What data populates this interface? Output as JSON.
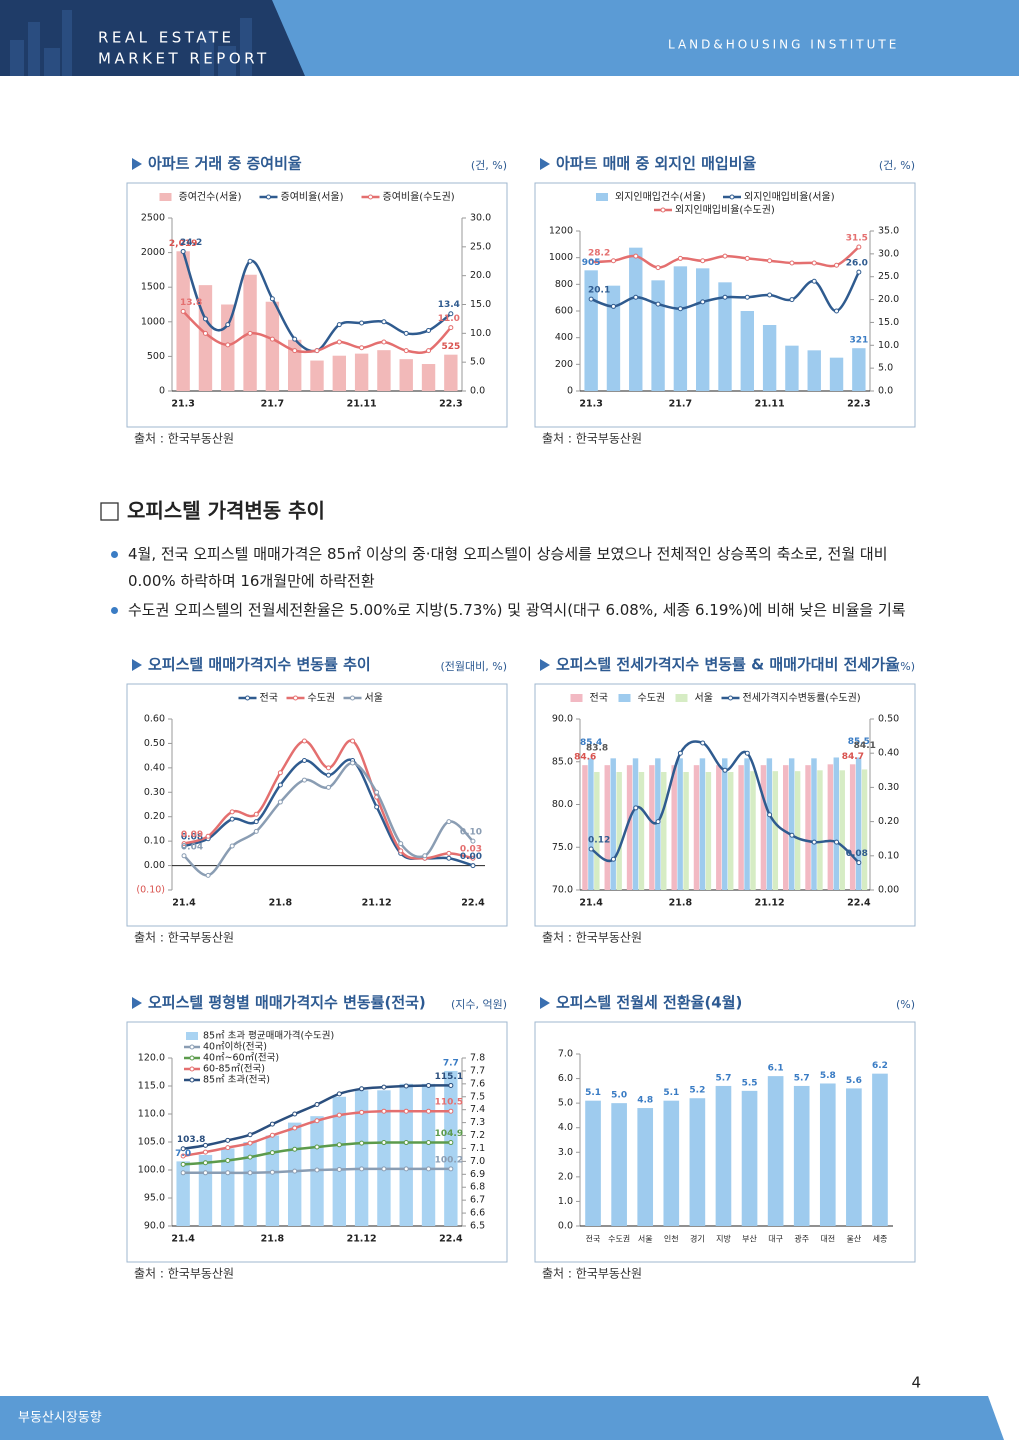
{
  "header": {
    "line1": "REAL ESTATE",
    "line2": "MARKET REPORT",
    "institute": "LAND&HOUSING INSTITUTE"
  },
  "section": {
    "title": "오피스텔 가격변동 추이",
    "bullets": [
      "4월, 전국 오피스텔 매매가격은 85㎡ 이상의 중·대형 오피스텔이 상승세를 보였으나 전체적인 상승폭의 축소로, 전월 대비 0.00% 하락하며 16개월만에 하락전환",
      "수도권 오피스텔의 전월세전환율은 5.00%로 지방(5.73%) 및 광역시(대구 6.08%, 세종 6.19%)에 비해 낮은 비율을 기록"
    ]
  },
  "page_number": "4",
  "footer": "부동산시장동향",
  "chart_data": [
    {
      "type": "combo",
      "title": "아파트 거래 중 증여비율",
      "unit": "(건, %)",
      "source": "출처 : 한국부동산원",
      "legend": "top",
      "categories": [
        "21.3",
        null,
        null,
        null,
        "21.7",
        null,
        null,
        null,
        "21.11",
        null,
        null,
        null,
        "22.3"
      ],
      "ylim": [
        0,
        2500
      ],
      "yticks": [
        0,
        500,
        1000,
        1500,
        2000,
        2500
      ],
      "y2lim": [
        0,
        30
      ],
      "y2ticks": [
        {
          "value": 0,
          "label": "0.0"
        },
        {
          "value": 5,
          "label": "5.0"
        },
        {
          "value": 10,
          "label": "10.0"
        },
        {
          "value": 15,
          "label": "15.0"
        },
        {
          "value": 20,
          "label": "20.0"
        },
        {
          "value": 25,
          "label": "25.0"
        },
        {
          "value": 30,
          "label": "30.0"
        }
      ],
      "series": [
        {
          "name": "증여건수(서울)",
          "kind": "bar",
          "color": "#f2b9b9",
          "label_color": "#d9534f",
          "values": [
            2019,
            1530,
            1250,
            1680,
            1290,
            740,
            440,
            510,
            540,
            590,
            460,
            390,
            525
          ],
          "value_labels": [
            "2,019",
            null,
            null,
            null,
            null,
            null,
            null,
            null,
            null,
            null,
            null,
            null,
            "525"
          ]
        },
        {
          "name": "증여비율(서울)",
          "kind": "line",
          "axis": "y2",
          "color": "#2f5b8f",
          "values": [
            24.2,
            12.5,
            11.5,
            22.5,
            16,
            9,
            7,
            11.5,
            11.8,
            12,
            10,
            10.5,
            13.4
          ],
          "value_labels": [
            "24.2",
            null,
            null,
            null,
            null,
            null,
            null,
            null,
            null,
            null,
            null,
            null,
            "13.4"
          ]
        },
        {
          "name": "증여비율(수도권)",
          "kind": "line",
          "axis": "y2",
          "color": "#e46f6f",
          "values": [
            13.8,
            10,
            8,
            10,
            9,
            7,
            7,
            8.5,
            7.5,
            8.5,
            7,
            7,
            11
          ],
          "value_labels": [
            "13.8",
            null,
            null,
            null,
            null,
            null,
            null,
            null,
            null,
            null,
            null,
            null,
            "11.0"
          ]
        }
      ]
    },
    {
      "type": "combo",
      "title": "아파트 매매 중 외지인 매입비율",
      "unit": "(건, %)",
      "source": "출처 : 한국부동산원",
      "legend": "top",
      "categories": [
        "21.3",
        null,
        null,
        null,
        "21.7",
        null,
        null,
        null,
        "21.11",
        null,
        null,
        null,
        "22.3"
      ],
      "ylim": [
        0,
        1200
      ],
      "yticks": [
        0,
        200,
        400,
        600,
        800,
        1000,
        1200
      ],
      "y2lim": [
        0,
        35
      ],
      "y2ticks": [
        {
          "value": 0,
          "label": "0.0"
        },
        {
          "value": 5,
          "label": "5.0"
        },
        {
          "value": 10,
          "label": "10.0"
        },
        {
          "value": 15,
          "label": "15.0"
        },
        {
          "value": 20,
          "label": "20.0"
        },
        {
          "value": 25,
          "label": "25.0"
        },
        {
          "value": 30,
          "label": "30.0"
        },
        {
          "value": 35,
          "label": "35.0"
        }
      ],
      "series": [
        {
          "name": "외지인매입건수(서울)",
          "kind": "bar",
          "color": "#9ecbee",
          "label_color": "#3a7cc4",
          "values": [
            905,
            790,
            1075,
            830,
            935,
            920,
            815,
            600,
            495,
            340,
            305,
            250,
            321
          ],
          "value_labels": [
            "905",
            null,
            null,
            null,
            null,
            null,
            null,
            null,
            null,
            null,
            null,
            null,
            "321"
          ]
        },
        {
          "name": "외지인매입비율(서울)",
          "kind": "line",
          "axis": "y2",
          "color": "#2f5b8f",
          "values": [
            20.1,
            18.5,
            20.5,
            19,
            18,
            19.5,
            20.5,
            20.5,
            21,
            20,
            24,
            17.5,
            26
          ],
          "value_labels": [
            "20.1",
            null,
            null,
            null,
            null,
            null,
            null,
            null,
            null,
            null,
            null,
            null,
            "26.0"
          ]
        },
        {
          "name": "외지인매입비율(수도권)",
          "kind": "line",
          "axis": "y2",
          "color": "#e46f6f",
          "values": [
            28.2,
            28.5,
            29.5,
            27,
            29,
            28.5,
            29.5,
            29,
            28.5,
            28,
            28,
            27.5,
            31.5
          ],
          "value_labels": [
            "28.2",
            null,
            null,
            null,
            null,
            null,
            null,
            null,
            null,
            null,
            null,
            null,
            "31.5"
          ]
        }
      ]
    },
    {
      "type": "line",
      "title": "오피스텔 매매가격지수 변동률 추이",
      "unit": "(전월대비, %)",
      "source": "출처 : 한국부동산원",
      "legend": "top",
      "categories": [
        "21.4",
        null,
        null,
        null,
        "21.8",
        null,
        null,
        null,
        "21.12",
        null,
        null,
        null,
        "22.4"
      ],
      "ylim": [
        -0.1,
        0.6
      ],
      "yticks": [
        {
          "value": -0.1,
          "label": "(0.10)"
        },
        {
          "value": 0,
          "label": "0.00"
        },
        {
          "value": 0.1,
          "label": "0.10"
        },
        {
          "value": 0.2,
          "label": "0.20"
        },
        {
          "value": 0.3,
          "label": "0.30"
        },
        {
          "value": 0.4,
          "label": "0.40"
        },
        {
          "value": 0.5,
          "label": "0.50"
        },
        {
          "value": 0.6,
          "label": "0.60"
        }
      ],
      "series": [
        {
          "name": "전국",
          "kind": "line",
          "color": "#2f5b8f",
          "values": [
            0.08,
            0.11,
            0.19,
            0.18,
            0.33,
            0.43,
            0.37,
            0.43,
            0.24,
            0.05,
            0.03,
            0.03,
            0
          ],
          "value_labels": [
            "0.08",
            null,
            null,
            null,
            null,
            null,
            null,
            null,
            null,
            null,
            null,
            null,
            "0.00"
          ]
        },
        {
          "name": "수도권",
          "kind": "line",
          "color": "#e46f6f",
          "values": [
            0.09,
            0.12,
            0.22,
            0.21,
            0.38,
            0.51,
            0.4,
            0.51,
            0.28,
            0.06,
            0.03,
            0.05,
            0.03
          ],
          "value_labels": [
            "0.09",
            null,
            null,
            null,
            null,
            null,
            null,
            null,
            null,
            null,
            null,
            null,
            "0.03"
          ]
        },
        {
          "name": "서울",
          "kind": "line",
          "color": "#8a9db3",
          "values": [
            0.04,
            -0.04,
            0.08,
            0.14,
            0.26,
            0.35,
            0.32,
            0.42,
            0.3,
            0.09,
            0.04,
            0.18,
            0.1
          ],
          "value_labels": [
            "0.04",
            null,
            null,
            null,
            null,
            null,
            null,
            null,
            null,
            null,
            null,
            null,
            "0.10"
          ]
        }
      ]
    },
    {
      "type": "combo",
      "title": "오피스텔 전세가격지수 변동률 & 매매가대비 전세가율",
      "unit": "(%)",
      "source": "출처 : 한국부동산원",
      "legend": "top",
      "categories": [
        "21.4",
        null,
        null,
        null,
        "21.8",
        null,
        null,
        null,
        "21.12",
        null,
        null,
        null,
        "22.4"
      ],
      "ylim": [
        70,
        90
      ],
      "yticks": [
        {
          "value": 70,
          "label": "70.0"
        },
        {
          "value": 75,
          "label": "75.0"
        },
        {
          "value": 80,
          "label": "80.0"
        },
        {
          "value": 85,
          "label": "85.0"
        },
        {
          "value": 90,
          "label": "90.0"
        }
      ],
      "y2lim": [
        0,
        0.5
      ],
      "y2ticks": [
        {
          "value": 0,
          "label": "0.00"
        },
        {
          "value": 0.1,
          "label": "0.10"
        },
        {
          "value": 0.2,
          "label": "0.20"
        },
        {
          "value": 0.3,
          "label": "0.30"
        },
        {
          "value": 0.4,
          "label": "0.40"
        },
        {
          "value": 0.5,
          "label": "0.50"
        }
      ],
      "series": [
        {
          "name": "전국",
          "kind": "bar",
          "color": "#f2b9c3",
          "label_color": "#d9534f",
          "values": [
            84.6,
            84.6,
            84.6,
            84.6,
            84.6,
            84.6,
            84.6,
            84.6,
            84.6,
            84.6,
            84.6,
            84.7,
            84.7
          ],
          "value_labels": [
            "84.6",
            null,
            null,
            null,
            null,
            null,
            null,
            null,
            null,
            null,
            null,
            null,
            "84.7"
          ]
        },
        {
          "name": "수도권",
          "kind": "bar",
          "color": "#9ecbee",
          "label_color": "#3a7cc4",
          "values": [
            85.4,
            85.4,
            85.4,
            85.4,
            85.4,
            85.4,
            85.4,
            85.4,
            85.4,
            85.4,
            85.4,
            85.5,
            85.5
          ],
          "value_labels": [
            "85.4",
            null,
            null,
            null,
            null,
            null,
            null,
            null,
            null,
            null,
            null,
            null,
            "85.5"
          ]
        },
        {
          "name": "서울",
          "kind": "bar",
          "color": "#d6ecc4",
          "label_color": "#555555",
          "values": [
            83.8,
            83.8,
            83.8,
            83.8,
            83.8,
            83.8,
            83.8,
            83.9,
            83.9,
            83.9,
            84,
            84,
            84.1
          ],
          "value_labels": [
            "83.8",
            null,
            null,
            null,
            null,
            null,
            null,
            null,
            null,
            null,
            null,
            null,
            "84.1"
          ]
        },
        {
          "name": "전세가격지수변동률(수도권)",
          "kind": "line",
          "axis": "y2",
          "color": "#2f5b8f",
          "values": [
            0.12,
            0.09,
            0.24,
            0.2,
            0.4,
            0.43,
            0.35,
            0.4,
            0.22,
            0.16,
            0.14,
            0.14,
            0.08
          ],
          "value_labels": [
            "0.12",
            null,
            null,
            null,
            null,
            null,
            null,
            null,
            null,
            null,
            null,
            null,
            "0.08"
          ]
        }
      ]
    },
    {
      "type": "combo",
      "title": "오피스텔 평형별 매매가격지수 변동률(전국)",
      "unit": "(지수, 억원)",
      "source": "출처 : 한국부동산원",
      "legend": "top-left",
      "categories": [
        "21.4",
        null,
        null,
        null,
        "21.8",
        null,
        null,
        null,
        "21.12",
        null,
        null,
        null,
        "22.4"
      ],
      "ylim": [
        90,
        120
      ],
      "yticks": [
        {
          "value": 90,
          "label": "90.0"
        },
        {
          "value": 95,
          "label": "95.0"
        },
        {
          "value": 100,
          "label": "100.0"
        },
        {
          "value": 105,
          "label": "105.0"
        },
        {
          "value": 110,
          "label": "110.0"
        },
        {
          "value": 115,
          "label": "115.0"
        },
        {
          "value": 120,
          "label": "120.0"
        }
      ],
      "y2lim": [
        6.5,
        7.8
      ],
      "y2ticks": [
        6.5,
        6.6,
        6.7,
        6.8,
        6.9,
        {
          "value": 7,
          "label": "7.0"
        },
        7.1,
        7.2,
        7.3,
        7.4,
        7.5,
        7.6,
        7.7,
        7.8
      ],
      "series": [
        {
          "name": "85㎡ 초과 평균매매가격(수도권)",
          "kind": "bar",
          "axis": "y2",
          "color": "#a9d3f2",
          "label_color": "#3a7cc4",
          "values": [
            7,
            7.05,
            7.1,
            7.15,
            7.2,
            7.3,
            7.35,
            7.5,
            7.55,
            7.55,
            7.6,
            7.6,
            7.7
          ],
          "value_labels": [
            "7.0",
            null,
            null,
            null,
            null,
            null,
            null,
            null,
            null,
            null,
            null,
            null,
            "7.7"
          ]
        },
        {
          "name": "40㎡이하(전국)",
          "kind": "line",
          "color": "#8a9db3",
          "values": [
            99.5,
            99.5,
            99.5,
            99.5,
            99.6,
            99.8,
            100,
            100.1,
            100.2,
            100.2,
            100.2,
            100.2,
            100.2
          ],
          "value_labels": [
            null,
            null,
            null,
            null,
            null,
            null,
            null,
            null,
            null,
            null,
            null,
            null,
            "100.2"
          ]
        },
        {
          "name": "40㎡~60㎡(전국)",
          "kind": "line",
          "color": "#5c9b4c",
          "values": [
            101,
            101.3,
            101.7,
            102.3,
            103.1,
            103.7,
            104.1,
            104.5,
            104.8,
            104.9,
            104.9,
            104.9,
            104.9
          ],
          "value_labels": [
            null,
            null,
            null,
            null,
            null,
            null,
            null,
            null,
            null,
            null,
            null,
            null,
            "104.9"
          ]
        },
        {
          "name": "60-85㎡(전국)",
          "kind": "line",
          "color": "#e46f6f",
          "values": [
            102.5,
            103.2,
            104,
            104.8,
            106.2,
            107.5,
            108.8,
            109.8,
            110.3,
            110.5,
            110.5,
            110.5,
            110.5
          ],
          "value_labels": [
            null,
            null,
            null,
            null,
            null,
            null,
            null,
            null,
            null,
            null,
            null,
            null,
            "110.5"
          ]
        },
        {
          "name": "85㎡ 초과(전국)",
          "kind": "line",
          "color": "#2b4f7e",
          "values": [
            103.8,
            104.4,
            105.3,
            106.3,
            108.2,
            110,
            111.7,
            113.6,
            114.5,
            114.8,
            115,
            115.1,
            115.1
          ],
          "value_labels": [
            "103.8",
            null,
            null,
            null,
            null,
            null,
            null,
            null,
            null,
            null,
            null,
            null,
            "115.1"
          ]
        }
      ]
    },
    {
      "type": "bar",
      "title": "오피스텔 전월세 전환율(4월)",
      "unit": "(%)",
      "source": "출처 : 한국부동산원",
      "color": "#9ecbee",
      "label_color": "#3a7cc4",
      "categories": [
        "전국",
        "수도권",
        "서울",
        "인천",
        "경기",
        "지방",
        "부산",
        "대구",
        "광주",
        "대전",
        "울산",
        "세종"
      ],
      "values": [
        5.1,
        5,
        4.8,
        5.1,
        5.2,
        5.7,
        5.5,
        6.1,
        5.7,
        5.8,
        5.6,
        6.2
      ],
      "value_labels": [
        "5.1",
        "5.0",
        "4.8",
        "5.1",
        "5.2",
        "5.7",
        "5.5",
        "6.1",
        "5.7",
        "5.8",
        "5.6",
        "6.2"
      ],
      "ylim": [
        0,
        7
      ],
      "yticks": [
        {
          "value": 0,
          "label": "0.0"
        },
        {
          "value": 1,
          "label": "1.0"
        },
        {
          "value": 2,
          "label": "2.0"
        },
        {
          "value": 3,
          "label": "3.0"
        },
        {
          "value": 4,
          "label": "4.0"
        },
        {
          "value": 5,
          "label": "5.0"
        },
        {
          "value": 6,
          "label": "6.0"
        },
        {
          "value": 7,
          "label": "7.0"
        }
      ]
    }
  ]
}
